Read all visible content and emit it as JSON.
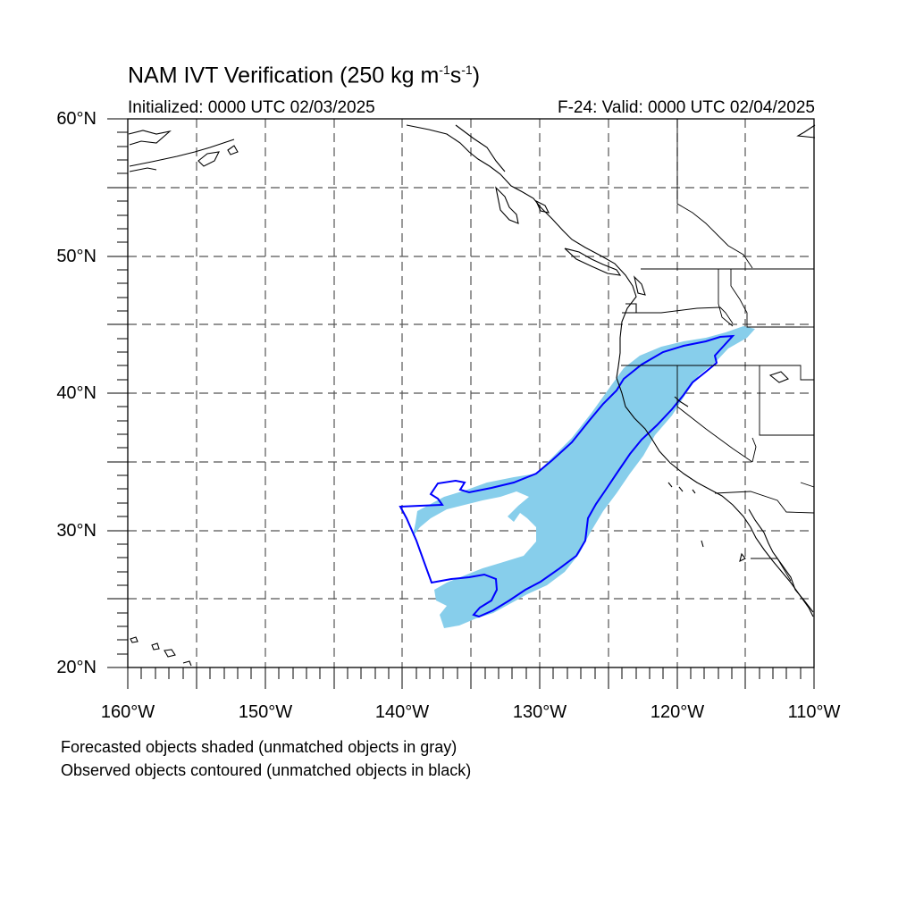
{
  "figure": {
    "title_main": "NAM IVT Verification (250 kg m",
    "title_exp1": "-1",
    "title_mid": "s",
    "title_exp2": "-1",
    "title_end": ")",
    "initialized": "Initialized: 0000 UTC 02/03/2025",
    "valid": "F-24: Valid: 0000 UTC 02/04/2025",
    "footnote_forecast": "Forecasted objects shaded (unmatched objects in gray)",
    "footnote_observed": "Observed objects contoured (unmatched objects in black)"
  },
  "map": {
    "projection": "cylindrical equidistant",
    "lon_range": [
      -160,
      -110
    ],
    "lat_range": [
      20,
      60
    ],
    "grid": "dashed every 5 degrees",
    "lat_labels": [
      "60°N",
      "50°N",
      "40°N",
      "30°N",
      "20°N"
    ],
    "lon_labels": [
      "160°W",
      "150°W",
      "140°W",
      "130°W",
      "120°W",
      "110°W"
    ],
    "colors": {
      "forecast_fill": "#87ceeb",
      "observed_contour": "#0000ff",
      "coastline": "#000000",
      "grid": "#555555"
    }
  }
}
